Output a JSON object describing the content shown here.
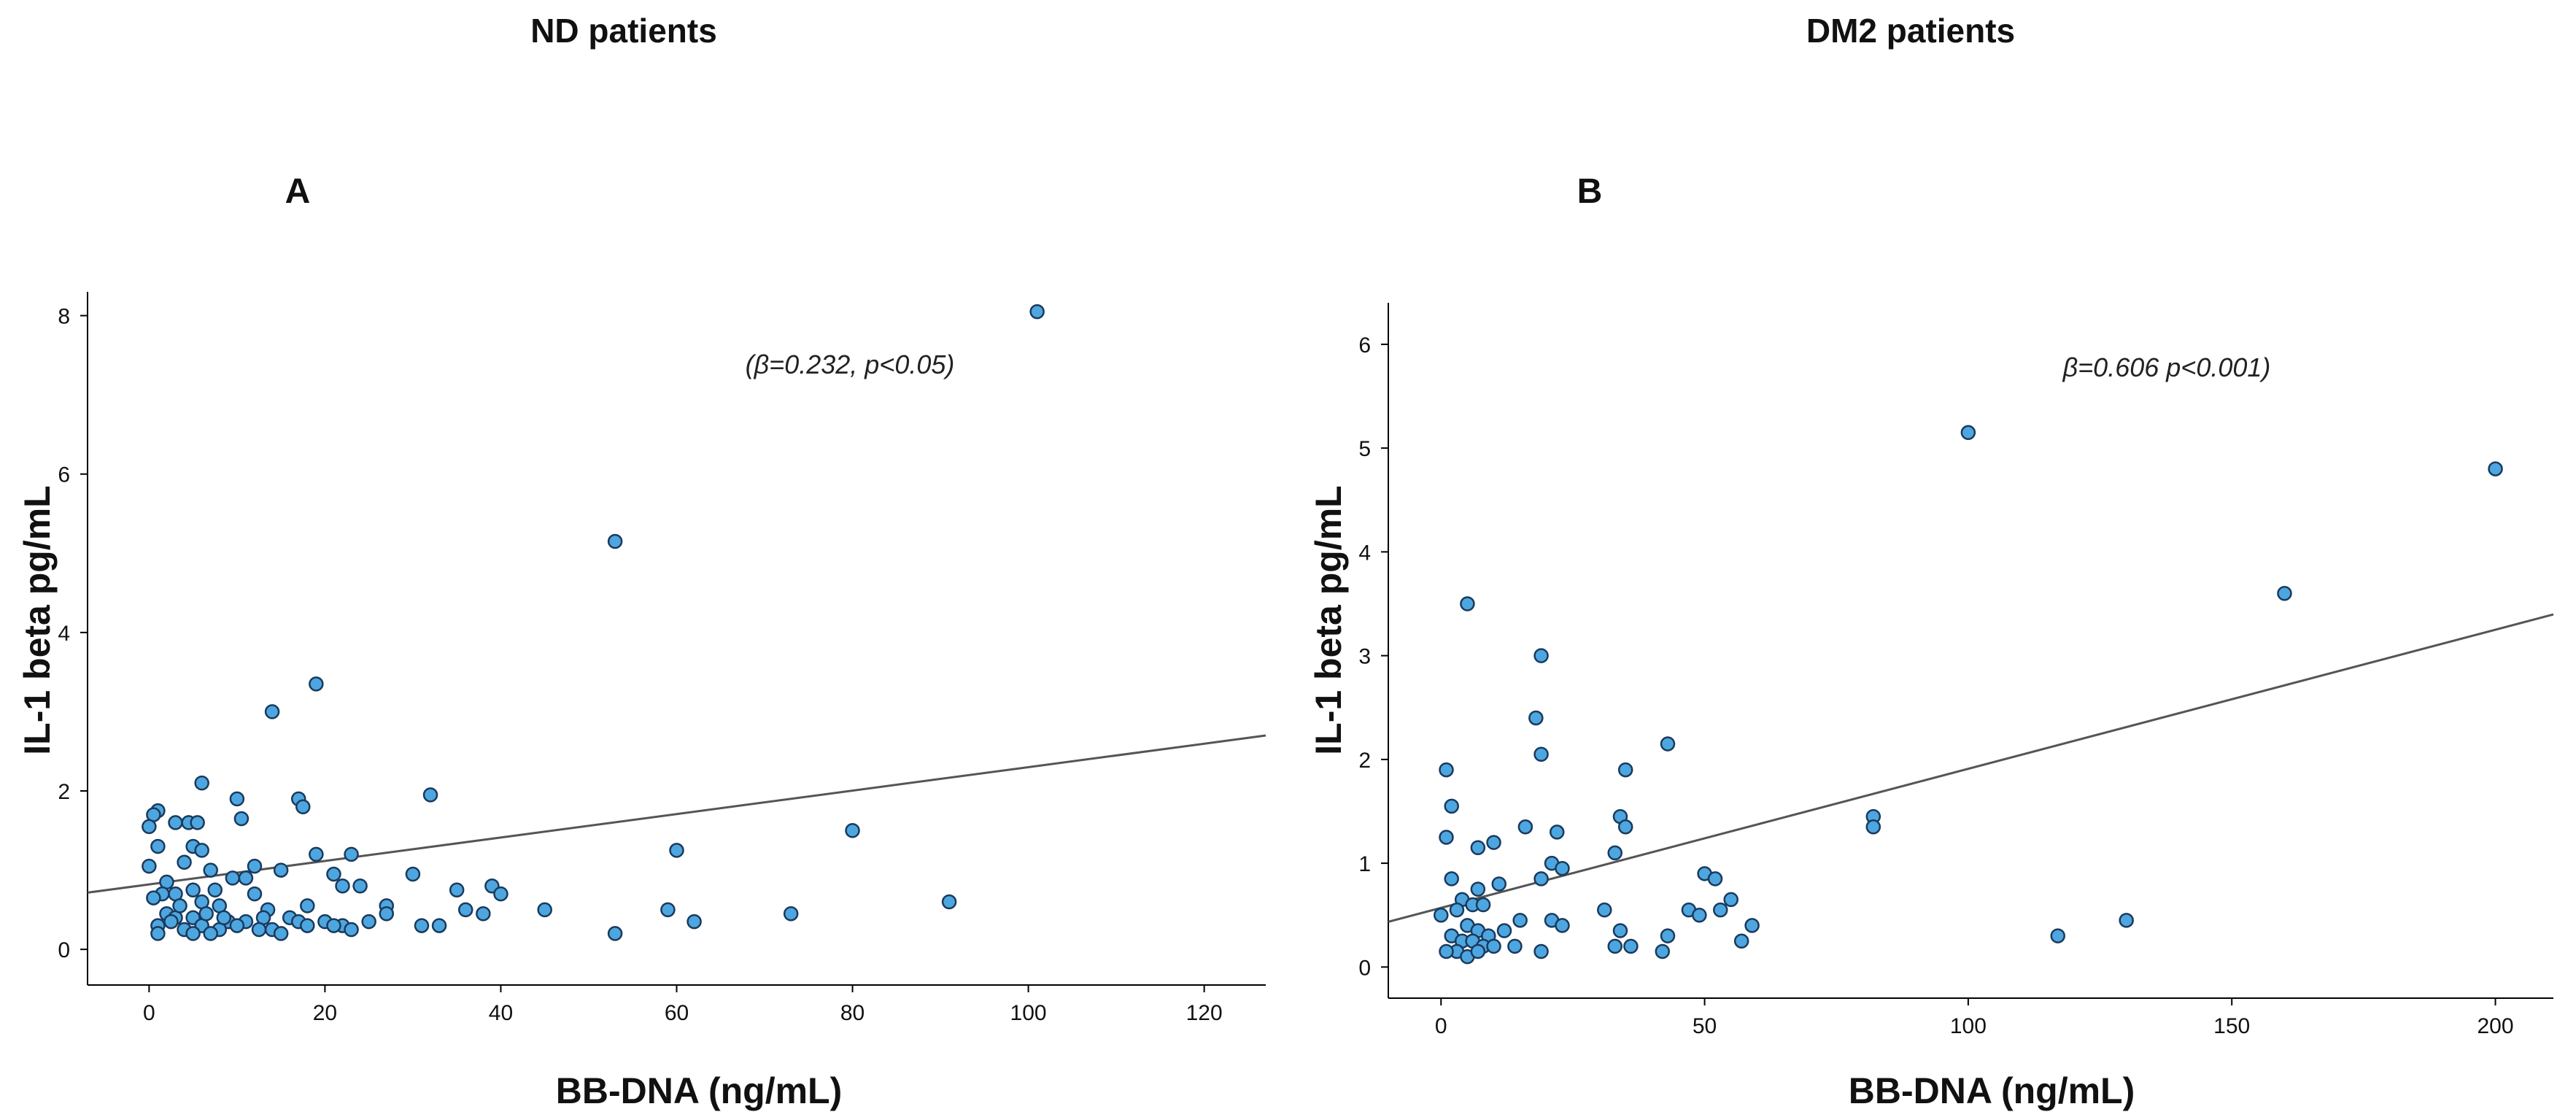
{
  "chart_data": [
    {
      "type": "scatter",
      "panel_label": "A",
      "title": "ND patients",
      "xlabel": "BB-DNA (ng/mL)",
      "ylabel": "IL-1 beta pg/mL",
      "xlim": [
        -7,
        127
      ],
      "ylim": [
        -0.45,
        8.3
      ],
      "xticks": [
        0,
        20,
        40,
        60,
        80,
        100,
        120
      ],
      "yticks": [
        0,
        2,
        4,
        6,
        8
      ],
      "annotation": "(β=0.232, p<0.05)",
      "fit_line": {
        "intercept": 0.82,
        "slope": 0.0148
      },
      "colors": {
        "point_fill": "#4da6e0",
        "point_stroke": "#1a3a5c",
        "line": "#555555"
      },
      "points": [
        [
          101,
          8.05
        ],
        [
          53,
          5.15
        ],
        [
          19,
          3.35
        ],
        [
          14,
          3.0
        ],
        [
          6,
          2.1
        ],
        [
          32,
          1.95
        ],
        [
          10,
          1.9
        ],
        [
          17,
          1.9
        ],
        [
          17.5,
          1.8
        ],
        [
          1,
          1.75
        ],
        [
          0.5,
          1.7
        ],
        [
          3,
          1.6
        ],
        [
          4.5,
          1.6
        ],
        [
          5.5,
          1.6
        ],
        [
          0,
          1.55
        ],
        [
          10.5,
          1.65
        ],
        [
          5,
          1.3
        ],
        [
          6,
          1.25
        ],
        [
          1,
          1.3
        ],
        [
          19,
          1.2
        ],
        [
          23,
          1.2
        ],
        [
          80,
          1.5
        ],
        [
          60,
          1.25
        ],
        [
          12,
          1.05
        ],
        [
          4,
          1.1
        ],
        [
          7,
          1.0
        ],
        [
          0,
          1.05
        ],
        [
          9.5,
          0.9
        ],
        [
          11,
          0.9
        ],
        [
          15,
          1.0
        ],
        [
          21,
          0.95
        ],
        [
          30,
          0.95
        ],
        [
          35,
          0.75
        ],
        [
          39,
          0.8
        ],
        [
          40,
          0.7
        ],
        [
          22,
          0.8
        ],
        [
          24,
          0.8
        ],
        [
          2,
          0.85
        ],
        [
          7.5,
          0.75
        ],
        [
          12,
          0.7
        ],
        [
          5,
          0.75
        ],
        [
          3,
          0.7
        ],
        [
          1.5,
          0.7
        ],
        [
          0.5,
          0.65
        ],
        [
          6,
          0.6
        ],
        [
          8,
          0.55
        ],
        [
          13.5,
          0.5
        ],
        [
          18,
          0.55
        ],
        [
          27,
          0.55
        ],
        [
          36,
          0.5
        ],
        [
          38,
          0.45
        ],
        [
          45,
          0.5
        ],
        [
          59,
          0.5
        ],
        [
          91,
          0.6
        ],
        [
          27,
          0.45
        ],
        [
          2,
          0.45
        ],
        [
          3,
          0.4
        ],
        [
          5,
          0.4
        ],
        [
          9,
          0.35
        ],
        [
          11,
          0.35
        ],
        [
          13,
          0.4
        ],
        [
          16,
          0.4
        ],
        [
          17,
          0.35
        ],
        [
          20,
          0.35
        ],
        [
          22,
          0.3
        ],
        [
          25,
          0.35
        ],
        [
          73,
          0.45
        ],
        [
          62,
          0.35
        ],
        [
          33,
          0.3
        ],
        [
          1,
          0.3
        ],
        [
          4,
          0.25
        ],
        [
          6,
          0.3
        ],
        [
          8,
          0.25
        ],
        [
          10,
          0.3
        ],
        [
          14,
          0.25
        ],
        [
          18,
          0.3
        ],
        [
          21,
          0.3
        ],
        [
          23,
          0.25
        ],
        [
          5,
          0.2
        ],
        [
          7,
          0.2
        ],
        [
          15,
          0.2
        ],
        [
          1,
          0.2
        ],
        [
          53,
          0.2
        ],
        [
          31,
          0.3
        ],
        [
          3.5,
          0.55
        ],
        [
          8.5,
          0.4
        ],
        [
          12.5,
          0.25
        ],
        [
          2.5,
          0.35
        ],
        [
          6.5,
          0.45
        ]
      ]
    },
    {
      "type": "scatter",
      "panel_label": "B",
      "title": "DM2 patients",
      "xlabel": "BB-DNA (ng/mL)",
      "ylabel": "IL-1 beta pg/mL",
      "xlim": [
        -10,
        211
      ],
      "ylim": [
        -0.3,
        6.4
      ],
      "xticks": [
        0,
        50,
        100,
        150,
        200
      ],
      "yticks": [
        0,
        1,
        2,
        3,
        4,
        5,
        6
      ],
      "annotation": "β=0.606 p<0.001)",
      "fit_line": {
        "intercept": 0.57,
        "slope": 0.0134
      },
      "colors": {
        "point_fill": "#4da6e0",
        "point_stroke": "#1a3a5c",
        "line": "#555555"
      },
      "points": [
        [
          100,
          5.15
        ],
        [
          200,
          4.8
        ],
        [
          160,
          3.6
        ],
        [
          5,
          3.5
        ],
        [
          19,
          3.0
        ],
        [
          18,
          2.4
        ],
        [
          43,
          2.15
        ],
        [
          19,
          2.05
        ],
        [
          1,
          1.9
        ],
        [
          35,
          1.9
        ],
        [
          2,
          1.55
        ],
        [
          82,
          1.45
        ],
        [
          82,
          1.35
        ],
        [
          16,
          1.35
        ],
        [
          22,
          1.3
        ],
        [
          1,
          1.25
        ],
        [
          34,
          1.45
        ],
        [
          35,
          1.35
        ],
        [
          10,
          1.2
        ],
        [
          7,
          1.15
        ],
        [
          33,
          1.1
        ],
        [
          21,
          1.0
        ],
        [
          23,
          0.95
        ],
        [
          50,
          0.9
        ],
        [
          52,
          0.85
        ],
        [
          2,
          0.85
        ],
        [
          19,
          0.85
        ],
        [
          11,
          0.8
        ],
        [
          7,
          0.75
        ],
        [
          55,
          0.65
        ],
        [
          4,
          0.65
        ],
        [
          6,
          0.6
        ],
        [
          8,
          0.6
        ],
        [
          3,
          0.55
        ],
        [
          0,
          0.5
        ],
        [
          47,
          0.55
        ],
        [
          49,
          0.5
        ],
        [
          31,
          0.55
        ],
        [
          53,
          0.55
        ],
        [
          130,
          0.45
        ],
        [
          21,
          0.45
        ],
        [
          23,
          0.4
        ],
        [
          59,
          0.4
        ],
        [
          15,
          0.45
        ],
        [
          5,
          0.4
        ],
        [
          7,
          0.35
        ],
        [
          9,
          0.3
        ],
        [
          12,
          0.35
        ],
        [
          117,
          0.3
        ],
        [
          34,
          0.35
        ],
        [
          43,
          0.3
        ],
        [
          2,
          0.3
        ],
        [
          4,
          0.25
        ],
        [
          6,
          0.25
        ],
        [
          8,
          0.2
        ],
        [
          10,
          0.2
        ],
        [
          14,
          0.2
        ],
        [
          19,
          0.15
        ],
        [
          33,
          0.2
        ],
        [
          36,
          0.2
        ],
        [
          42,
          0.15
        ],
        [
          57,
          0.25
        ],
        [
          3,
          0.15
        ],
        [
          5,
          0.1
        ],
        [
          7,
          0.15
        ],
        [
          1,
          0.15
        ]
      ]
    }
  ]
}
